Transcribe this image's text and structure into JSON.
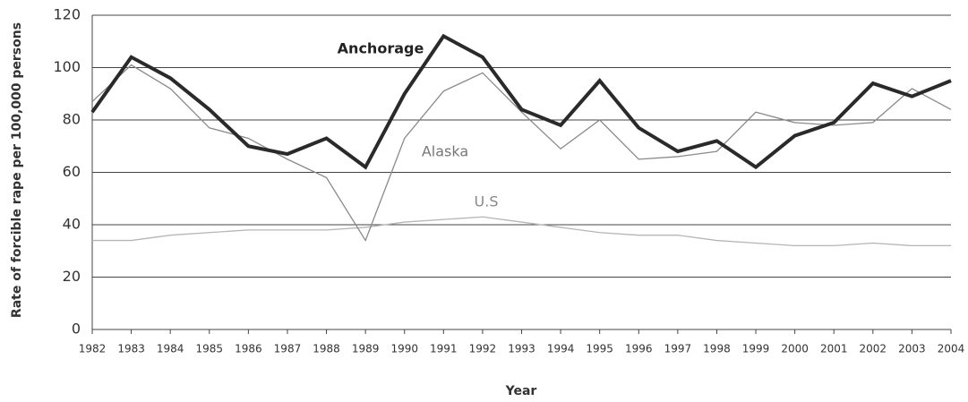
{
  "chart_data": {
    "type": "line",
    "x_label": "Year",
    "y_label": "Rate of forcible rape per 100,000 persons",
    "x": [
      1982,
      1983,
      1984,
      1985,
      1986,
      1987,
      1988,
      1989,
      1990,
      1991,
      1992,
      1993,
      1994,
      1995,
      1996,
      1997,
      1998,
      1999,
      2000,
      2001,
      2002,
      2003,
      2004
    ],
    "xlim": [
      1982,
      2004
    ],
    "xticks": [
      1982,
      1983,
      1984,
      1985,
      1986,
      1987,
      1988,
      1989,
      1990,
      1991,
      1992,
      1993,
      1994,
      1995,
      1996,
      1997,
      1998,
      1999,
      2000,
      2001,
      2002,
      2003,
      2004
    ],
    "ylim": [
      0,
      120
    ],
    "yticks": [
      0,
      20,
      40,
      60,
      80,
      100,
      120
    ],
    "grid": true,
    "series": [
      {
        "name": "Anchorage",
        "color": "#2a2a2a",
        "values": [
          83,
          104,
          96,
          84,
          70,
          67,
          73,
          62,
          90,
          112,
          104,
          84,
          78,
          95,
          77,
          68,
          72,
          62,
          74,
          79,
          94,
          89,
          95
        ]
      },
      {
        "name": "Alaska",
        "color": "#8a8a8a",
        "values": [
          87,
          101,
          92,
          77,
          73,
          65,
          58,
          34,
          73,
          91,
          98,
          83,
          69,
          80,
          65,
          66,
          68,
          83,
          79,
          78,
          79,
          92,
          84
        ]
      },
      {
        "name": "U.S",
        "color": "#b5b5b5",
        "values": [
          34,
          34,
          36,
          37,
          38,
          38,
          38,
          39,
          41,
          42,
          43,
          41,
          39,
          37,
          36,
          36,
          34,
          33,
          32,
          32,
          33,
          32,
          32
        ]
      }
    ]
  }
}
